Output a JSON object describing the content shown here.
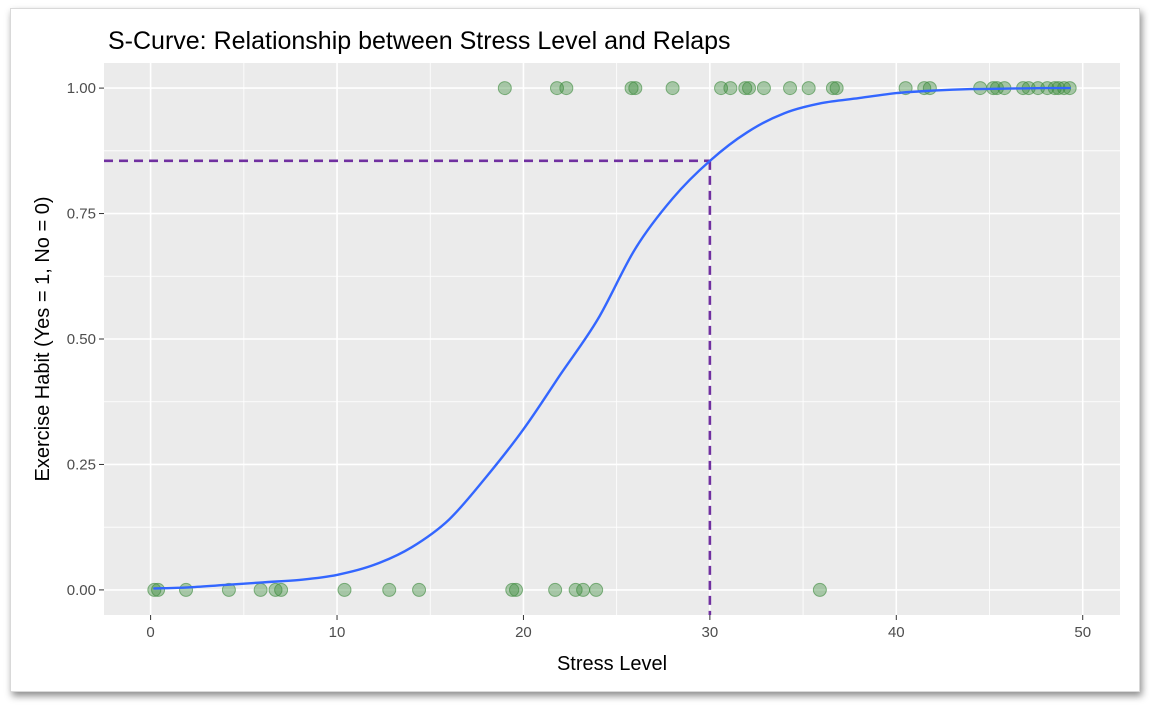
{
  "chart_data": {
    "type": "scatter",
    "title": "S-Curve: Relationship between Stress Level and Relaps",
    "xlabel": "Stress Level",
    "ylabel": "Exercise Habit (Yes = 1, No = 0)",
    "xlim": [
      -2.5,
      52
    ],
    "ylim": [
      -0.05,
      1.05
    ],
    "x_ticks": [
      0,
      10,
      20,
      30,
      40,
      50
    ],
    "x_tick_labels": [
      "0",
      "10",
      "20",
      "30",
      "40",
      "50"
    ],
    "y_ticks": [
      0,
      0.25,
      0.5,
      0.75,
      1
    ],
    "y_tick_labels": [
      "0.00",
      "0.25",
      "0.50",
      "0.75",
      "1.00"
    ],
    "grid": true,
    "background": "#ebebeb",
    "points": {
      "color": "#3c8b3c",
      "x": [
        0.2,
        0.4,
        1.9,
        4.2,
        5.9,
        6.7,
        7.0,
        10.4,
        12.8,
        14.4,
        19.4,
        19.6,
        21.7,
        22.8,
        23.2,
        23.9,
        35.9,
        19.0,
        21.8,
        22.3,
        25.8,
        26.0,
        28.0,
        30.6,
        31.1,
        31.9,
        32.1,
        32.9,
        34.3,
        35.3,
        36.6,
        36.8,
        40.5,
        41.5,
        41.8,
        44.5,
        45.2,
        45.4,
        45.8,
        46.8,
        47.1,
        47.6,
        48.1,
        48.5,
        48.7,
        49.0,
        49.3
      ],
      "y": [
        0,
        0,
        0,
        0,
        0,
        0,
        0,
        0,
        0,
        0,
        0,
        0,
        0,
        0,
        0,
        0,
        0,
        1,
        1,
        1,
        1,
        1,
        1,
        1,
        1,
        1,
        1,
        1,
        1,
        1,
        1,
        1,
        1,
        1,
        1,
        1,
        1,
        1,
        1,
        1,
        1,
        1,
        1,
        1,
        1,
        1,
        1
      ]
    },
    "fitted_curve": {
      "color": "#3366ff",
      "x": [
        0.2,
        2,
        4,
        6,
        8,
        10,
        12,
        14,
        16,
        18,
        20,
        22,
        24,
        26,
        28,
        30,
        32,
        34,
        36,
        38,
        40,
        42,
        44,
        46,
        48,
        49.3
      ],
      "y": [
        0.003,
        0.005,
        0.01,
        0.015,
        0.02,
        0.03,
        0.05,
        0.085,
        0.14,
        0.225,
        0.32,
        0.43,
        0.54,
        0.68,
        0.78,
        0.855,
        0.912,
        0.95,
        0.97,
        0.98,
        0.99,
        0.995,
        0.998,
        0.999,
        1.0,
        1.0
      ]
    },
    "reference_lines": {
      "color": "#7030a0",
      "x": 30,
      "y": 0.855
    }
  }
}
